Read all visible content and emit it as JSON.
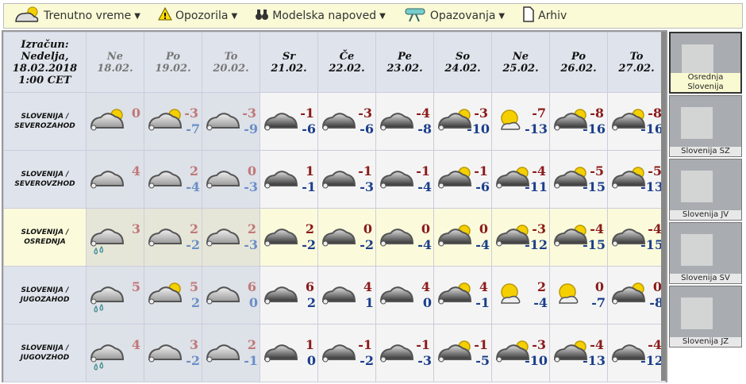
{
  "menu": [
    {
      "label": "Trenutno vreme",
      "icon": "cloud-sun-icon",
      "dropdown": true
    },
    {
      "label": "Opozorila",
      "icon": "warning-icon",
      "dropdown": true
    },
    {
      "label": "Modelska napoved",
      "icon": "binoculars-icon",
      "dropdown": true
    },
    {
      "label": "Opazovanja",
      "icon": "telescope-icon",
      "dropdown": true
    },
    {
      "label": "Arhiv",
      "icon": "document-icon",
      "dropdown": false
    }
  ],
  "header": {
    "izracun": [
      "Izračun:",
      "Nedelja,",
      "18.02.2018",
      "1:00 CET"
    ],
    "days": [
      {
        "d": "Ne",
        "date": "18.02.",
        "past": true
      },
      {
        "d": "Po",
        "date": "19.02.",
        "past": true
      },
      {
        "d": "To",
        "date": "20.02.",
        "past": true
      },
      {
        "d": "Sr",
        "date": "21.02."
      },
      {
        "d": "Če",
        "date": "22.02."
      },
      {
        "d": "Pe",
        "date": "23.02."
      },
      {
        "d": "So",
        "date": "24.02."
      },
      {
        "d": "Ne",
        "date": "25.02."
      },
      {
        "d": "Po",
        "date": "26.02."
      },
      {
        "d": "To",
        "date": "27.02."
      }
    ]
  },
  "rows": [
    {
      "label": [
        "SLOVENIJA /",
        "SEVEROZAHOD"
      ],
      "cells": [
        [
          "cloud-sun",
          "0",
          ""
        ],
        [
          "cloud-sun",
          "-3",
          "-7"
        ],
        [
          "cloud",
          "-3",
          "-9"
        ],
        [
          "cloud",
          "-1",
          "-6"
        ],
        [
          "cloud",
          "-3",
          "-6"
        ],
        [
          "cloud",
          "-4",
          "-8"
        ],
        [
          "cloud-sun",
          "-3",
          "-10"
        ],
        [
          "sun-cloud",
          "-7",
          "-13"
        ],
        [
          "cloud-sun",
          "-8",
          "-16"
        ],
        [
          "cloud-sun",
          "-8",
          "-16"
        ]
      ]
    },
    {
      "label": [
        "SLOVENIJA /",
        "SEVEROVZHOD"
      ],
      "cells": [
        [
          "cloud",
          "4",
          ""
        ],
        [
          "cloud",
          "2",
          "-4"
        ],
        [
          "cloud",
          "0",
          "-3"
        ],
        [
          "cloud",
          "1",
          "-1"
        ],
        [
          "cloud",
          "-1",
          "-3"
        ],
        [
          "cloud",
          "-1",
          "-4"
        ],
        [
          "cloud-sun",
          "-1",
          "-6"
        ],
        [
          "cloud-sun",
          "-4",
          "-11"
        ],
        [
          "cloud-sun",
          "-5",
          "-15"
        ],
        [
          "cloud-sun",
          "-5",
          "-13"
        ]
      ]
    },
    {
      "label": [
        "SLOVENIJA /",
        "OSREDNJA"
      ],
      "selected": true,
      "cells": [
        [
          "cloud-rain",
          "3",
          ""
        ],
        [
          "cloud",
          "2",
          "-2"
        ],
        [
          "cloud",
          "2",
          "-3"
        ],
        [
          "cloud",
          "2",
          "-2"
        ],
        [
          "cloud",
          "0",
          "-2"
        ],
        [
          "cloud",
          "0",
          "-4"
        ],
        [
          "cloud-sun",
          "0",
          "-4"
        ],
        [
          "cloud-sun",
          "-3",
          "-12"
        ],
        [
          "cloud-sun",
          "-4",
          "-15"
        ],
        [
          "cloud",
          "-4",
          "-15"
        ]
      ]
    },
    {
      "label": [
        "SLOVENIJA /",
        "JUGOZAHOD"
      ],
      "cells": [
        [
          "cloud-rain",
          "5",
          ""
        ],
        [
          "cloud-sun",
          "5",
          "2"
        ],
        [
          "cloud",
          "6",
          "0"
        ],
        [
          "cloud",
          "6",
          "2"
        ],
        [
          "cloud",
          "4",
          "1"
        ],
        [
          "cloud",
          "4",
          "0"
        ],
        [
          "cloud-sun",
          "4",
          "-1"
        ],
        [
          "sun-cloud",
          "2",
          "-4"
        ],
        [
          "sun-cloud",
          "0",
          "-7"
        ],
        [
          "cloud-sun",
          "0",
          "-8"
        ]
      ]
    },
    {
      "label": [
        "SLOVENIJA /",
        "JUGOVZHOD"
      ],
      "cells": [
        [
          "cloud-rain",
          "4",
          ""
        ],
        [
          "cloud",
          "3",
          "-2"
        ],
        [
          "cloud",
          "2",
          "-1"
        ],
        [
          "cloud",
          "1",
          "0"
        ],
        [
          "cloud",
          "-1",
          "-2"
        ],
        [
          "cloud",
          "-1",
          "-3"
        ],
        [
          "cloud-sun",
          "-1",
          "-5"
        ],
        [
          "cloud-sun",
          "-3",
          "-10"
        ],
        [
          "cloud-sun",
          "-4",
          "-13"
        ],
        [
          "cloud",
          "-4",
          "-12"
        ]
      ]
    }
  ],
  "regions": [
    {
      "label": "Osrednja Slovenija",
      "selected": true
    },
    {
      "label": "Slovenija SZ"
    },
    {
      "label": "Slovenija JV"
    },
    {
      "label": "Slovenija SV"
    },
    {
      "label": "Slovenija JZ"
    }
  ],
  "colors": {
    "max": "#8b1a1a",
    "min": "#1a3e8b",
    "menu_bg": "#fafad6",
    "selected_row": "#fbfbdc"
  }
}
